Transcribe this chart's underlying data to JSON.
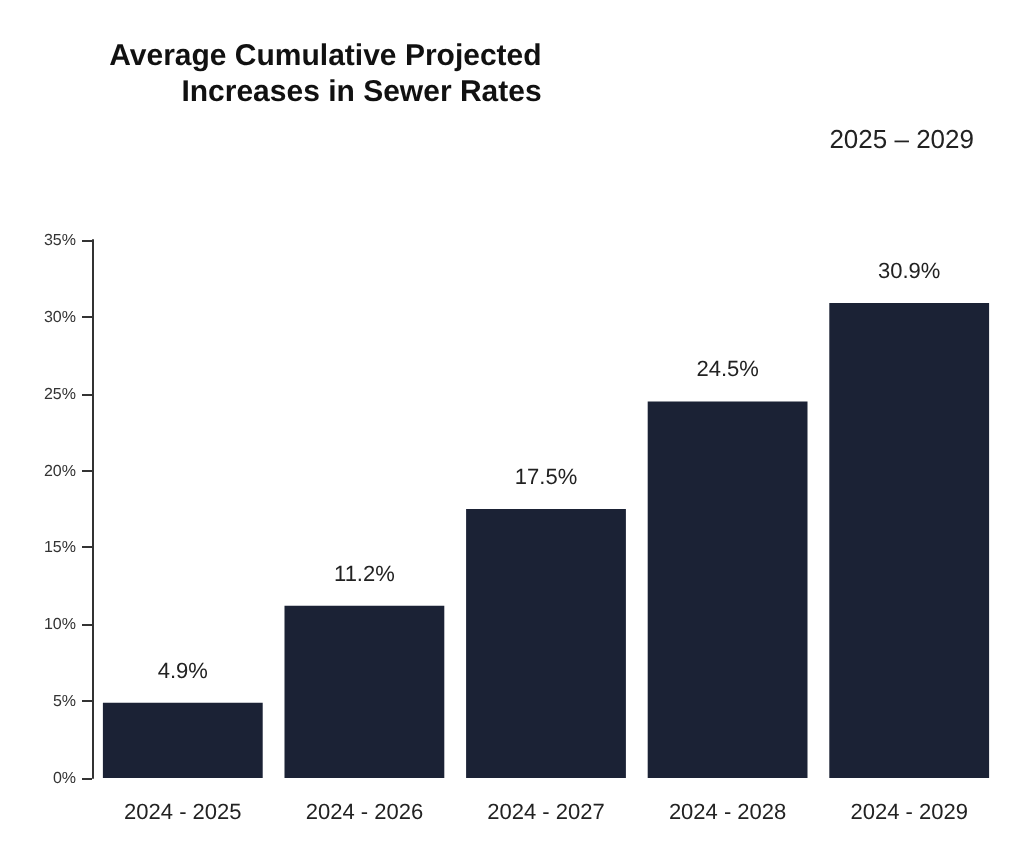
{
  "chart_data": {
    "type": "bar",
    "title": "Average Cumulative Projected\nIncreases in Sewer Rates",
    "subtitle": "2025 – 2029",
    "categories": [
      "2024 - 2025",
      "2024 - 2026",
      "2024 - 2027",
      "2024 - 2028",
      "2024 - 2029"
    ],
    "values": [
      4.9,
      11.2,
      17.5,
      24.5,
      30.9
    ],
    "value_labels": [
      "4.9%",
      "11.2%",
      "17.5%",
      "24.5%",
      "30.9%"
    ],
    "color": "#1b2235",
    "ylim": [
      0,
      35
    ],
    "yticks": [
      {
        "value": 0,
        "label": "0%"
      },
      {
        "value": 5,
        "label": "5%"
      },
      {
        "value": 10,
        "label": "10%"
      },
      {
        "value": 15,
        "label": "15%"
      },
      {
        "value": 20,
        "label": "20%"
      },
      {
        "value": 25,
        "label": "25%"
      },
      {
        "value": 30,
        "label": "30%"
      },
      {
        "value": 35,
        "label": "35%"
      }
    ],
    "grid": false
  }
}
